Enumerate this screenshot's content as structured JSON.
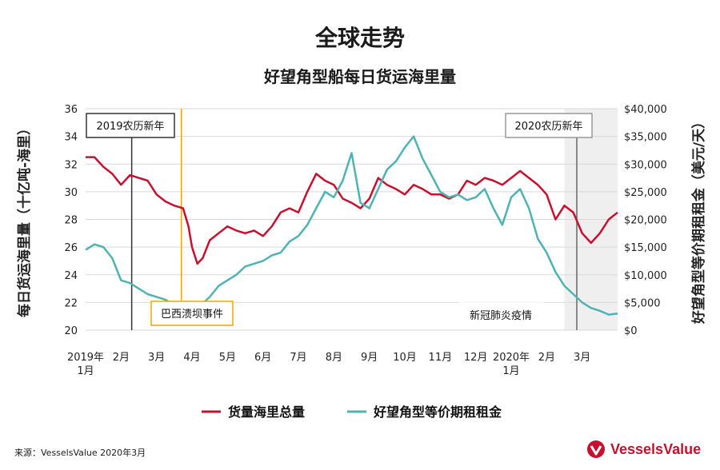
{
  "title": "全球走势",
  "subtitle": "好望角型船每日货运海里量",
  "source": "来源：VesselsValue 2020年3月",
  "logo_text": "VesselsValue",
  "colors": {
    "red": "#c8102e",
    "teal": "#4fb3b3",
    "shade": "#efefef",
    "orange": "#f0a500",
    "dark": "#333333"
  },
  "chart_data": {
    "type": "line",
    "x_tick_labels": [
      "2019年\n1月",
      "2月",
      "3月",
      "4月",
      "5月",
      "6月",
      "7月",
      "8月",
      "9月",
      "10月",
      "11月",
      "12月",
      "2020年\n1月",
      "2月",
      "3月"
    ],
    "y_left": {
      "label": "每日货运海里量（十亿吨-海里）",
      "ticks": [
        "20",
        "22",
        "24",
        "26",
        "28",
        "30",
        "32",
        "34",
        "36"
      ],
      "range": [
        20,
        36
      ]
    },
    "y_right": {
      "label": "好望角型等价期租租金（美元/天）",
      "ticks": [
        "$0",
        "$5,000",
        "$10,000",
        "$15,000",
        "$20,000",
        "$25,000",
        "$30,000",
        "$35,000",
        "$40,000"
      ],
      "range": [
        0,
        40000
      ]
    },
    "annotations": [
      {
        "label": "2019农历新年",
        "month": 1.3
      },
      {
        "label": "巴西溃坝事件",
        "month": 2.7
      },
      {
        "label": "2020农历新年",
        "month": 13.85
      },
      {
        "label": "新冠肺炎疫情",
        "month": 13.5
      }
    ],
    "shaded_region": {
      "from_month": 13.5,
      "to_month": 15.0
    },
    "series": [
      {
        "name": "货量海里总量",
        "axis": "left",
        "color": "#c8102e",
        "x": [
          0,
          0.25,
          0.5,
          0.75,
          1.0,
          1.25,
          1.5,
          1.75,
          2.0,
          2.25,
          2.5,
          2.75,
          2.9,
          3.0,
          3.15,
          3.3,
          3.5,
          3.75,
          4.0,
          4.25,
          4.5,
          4.75,
          5.0,
          5.25,
          5.5,
          5.75,
          6.0,
          6.25,
          6.5,
          6.75,
          7.0,
          7.25,
          7.5,
          7.75,
          8.0,
          8.25,
          8.5,
          8.75,
          9.0,
          9.25,
          9.5,
          9.75,
          10.0,
          10.25,
          10.5,
          10.75,
          11.0,
          11.25,
          11.5,
          11.75,
          12.0,
          12.25,
          12.5,
          12.75,
          13.0,
          13.25,
          13.5,
          13.75,
          14.0,
          14.25,
          14.5,
          14.75,
          15.0
        ],
        "values": [
          32.5,
          32.5,
          31.8,
          31.3,
          30.5,
          31.2,
          31.0,
          30.8,
          29.8,
          29.3,
          29.0,
          28.8,
          27.5,
          26.0,
          24.8,
          25.2,
          26.5,
          27.0,
          27.5,
          27.2,
          27.0,
          27.2,
          26.8,
          27.5,
          28.5,
          28.8,
          28.5,
          30.0,
          31.3,
          30.8,
          30.5,
          29.5,
          29.2,
          28.8,
          29.5,
          31.0,
          30.5,
          30.2,
          29.8,
          30.5,
          30.2,
          29.8,
          29.8,
          29.5,
          29.8,
          30.8,
          30.5,
          31.0,
          30.8,
          30.5,
          31.0,
          31.5,
          31.0,
          30.5,
          29.8,
          28.0,
          29.0,
          28.5,
          27.0,
          26.3,
          27.0,
          28.0,
          28.5
        ]
      },
      {
        "name": "好望角型等价期租租金",
        "axis": "right",
        "color": "#4fb3b3",
        "x": [
          0,
          0.25,
          0.5,
          0.75,
          1.0,
          1.25,
          1.5,
          1.75,
          2.0,
          2.25,
          2.5,
          2.75,
          3.0,
          3.25,
          3.5,
          3.75,
          4.0,
          4.25,
          4.5,
          4.75,
          5.0,
          5.25,
          5.5,
          5.75,
          6.0,
          6.25,
          6.5,
          6.75,
          7.0,
          7.25,
          7.5,
          7.75,
          8.0,
          8.25,
          8.5,
          8.75,
          9.0,
          9.25,
          9.5,
          9.75,
          10.0,
          10.25,
          10.5,
          10.75,
          11.0,
          11.25,
          11.5,
          11.75,
          12.0,
          12.25,
          12.5,
          12.75,
          13.0,
          13.25,
          13.5,
          13.75,
          14.0,
          14.25,
          14.5,
          14.75,
          15.0
        ],
        "values": [
          14500,
          15500,
          15000,
          13000,
          9000,
          8500,
          7500,
          6500,
          6000,
          5500,
          4500,
          4000,
          4000,
          4500,
          6000,
          8000,
          9000,
          10000,
          11500,
          12000,
          12500,
          13500,
          14000,
          16000,
          17000,
          19000,
          22000,
          25000,
          24000,
          27000,
          32000,
          23000,
          22000,
          25500,
          29000,
          30500,
          33000,
          35000,
          31000,
          28000,
          25000,
          24000,
          24500,
          23500,
          24000,
          25500,
          22000,
          19000,
          24000,
          25500,
          22000,
          16500,
          14000,
          10500,
          8000,
          6500,
          5000,
          4000,
          3500,
          2800,
          3000
        ]
      }
    ]
  }
}
